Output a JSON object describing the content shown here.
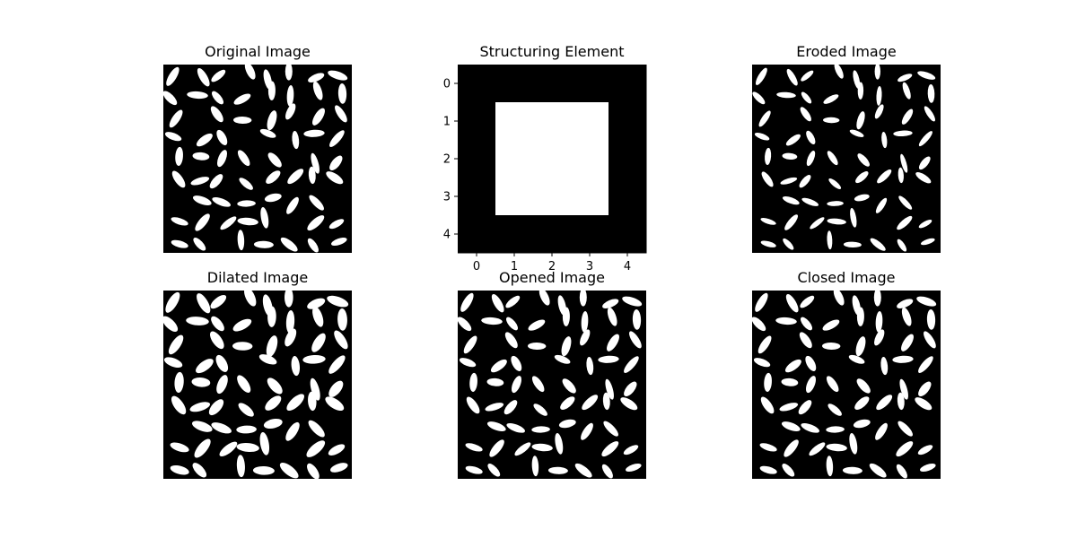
{
  "panels": {
    "original": {
      "title": "Original Image"
    },
    "structuring": {
      "title": "Structuring Element"
    },
    "eroded": {
      "title": "Eroded Image"
    },
    "dilated": {
      "title": "Dilated Image"
    },
    "opened": {
      "title": "Opened Image"
    },
    "closed": {
      "title": "Closed Image"
    }
  },
  "colors": {
    "background": "#000000",
    "foreground": "#ffffff"
  },
  "chart_data": {
    "type": "heatmap",
    "title": "Structuring Element",
    "colormap": "gray",
    "matrix": [
      [
        0,
        0,
        0,
        0,
        0
      ],
      [
        0,
        1,
        1,
        1,
        0
      ],
      [
        0,
        1,
        1,
        1,
        0
      ],
      [
        0,
        1,
        1,
        1,
        0
      ],
      [
        0,
        0,
        0,
        0,
        0
      ]
    ],
    "x_ticks": [
      "0",
      "1",
      "2",
      "3",
      "4"
    ],
    "y_ticks": [
      "0",
      "1",
      "2",
      "3",
      "4"
    ],
    "xlim": [
      -0.5,
      4.5
    ],
    "ylim": [
      4.5,
      -0.5
    ],
    "grid": false
  }
}
